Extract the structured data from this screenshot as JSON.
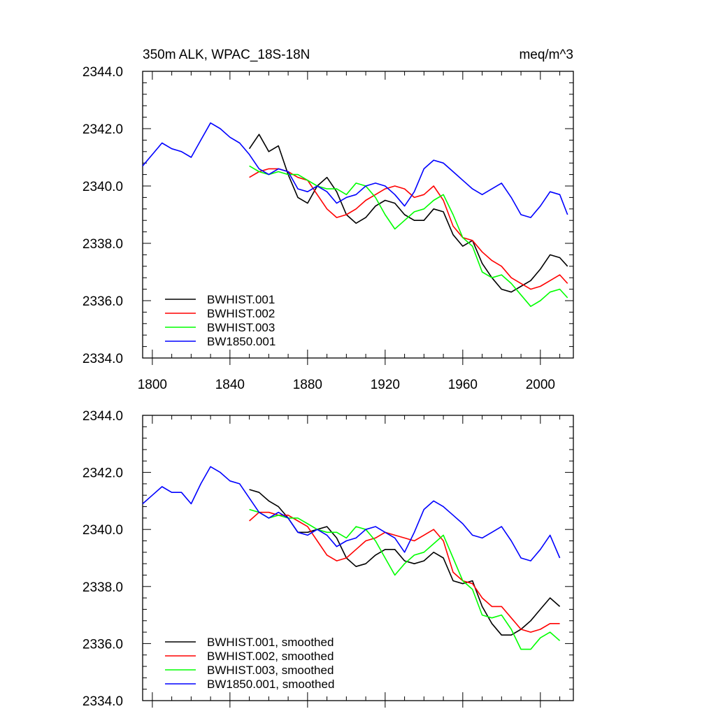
{
  "header": {
    "left_title": "350m ALK, WPAC_18S-18N",
    "right_title": "meq/m^3"
  },
  "chart_data": [
    {
      "type": "line",
      "title": "350m ALK, WPAC_18S-18N",
      "units": "meq/m^3",
      "xlim": [
        1795,
        2017
      ],
      "ylim": [
        2334,
        2344
      ],
      "xticks": [
        1800,
        1840,
        1880,
        1920,
        1960,
        2000
      ],
      "yticks": [
        2334,
        2336,
        2338,
        2340,
        2342,
        2344
      ],
      "ytick_labels": [
        "2334.0",
        "2336.0",
        "2338.0",
        "2340.0",
        "2342.0",
        "2344.0"
      ],
      "xtick_labels": [
        "1800",
        "1840",
        "1880",
        "1920",
        "1960",
        "2000"
      ],
      "legend_position": "bottom-left",
      "series": [
        {
          "name": "BWHIST.001",
          "color": "#000000",
          "x": [
            1850,
            1855,
            1860,
            1865,
            1870,
            1875,
            1880,
            1885,
            1890,
            1895,
            1900,
            1905,
            1910,
            1915,
            1920,
            1925,
            1930,
            1935,
            1940,
            1945,
            1950,
            1955,
            1960,
            1965,
            1970,
            1975,
            1980,
            1985,
            1990,
            1995,
            2000,
            2005,
            2010,
            2014
          ],
          "y": [
            2341.3,
            2341.8,
            2341.2,
            2341.4,
            2340.4,
            2339.6,
            2339.4,
            2340.0,
            2340.3,
            2339.8,
            2339.0,
            2338.7,
            2338.9,
            2339.3,
            2339.5,
            2339.4,
            2339.0,
            2338.8,
            2338.8,
            2339.2,
            2339.1,
            2338.3,
            2337.9,
            2338.1,
            2337.3,
            2336.8,
            2336.4,
            2336.3,
            2336.5,
            2336.7,
            2337.1,
            2337.6,
            2337.5,
            2337.2
          ]
        },
        {
          "name": "BWHIST.002",
          "color": "#ff0000",
          "x": [
            1850,
            1855,
            1860,
            1865,
            1870,
            1875,
            1880,
            1885,
            1890,
            1895,
            1900,
            1905,
            1910,
            1915,
            1920,
            1925,
            1930,
            1935,
            1940,
            1945,
            1950,
            1955,
            1960,
            1965,
            1970,
            1975,
            1980,
            1985,
            1990,
            1995,
            2000,
            2005,
            2010,
            2014
          ],
          "y": [
            2340.3,
            2340.5,
            2340.6,
            2340.6,
            2340.5,
            2340.3,
            2340.2,
            2339.7,
            2339.2,
            2338.9,
            2339.0,
            2339.2,
            2339.5,
            2339.7,
            2339.9,
            2340.0,
            2339.9,
            2339.6,
            2339.7,
            2340.0,
            2339.5,
            2338.6,
            2338.2,
            2338.1,
            2337.7,
            2337.4,
            2337.2,
            2336.8,
            2336.6,
            2336.4,
            2336.5,
            2336.7,
            2336.9,
            2336.6
          ]
        },
        {
          "name": "BWHIST.003",
          "color": "#00ff00",
          "x": [
            1850,
            1855,
            1860,
            1865,
            1870,
            1875,
            1880,
            1885,
            1890,
            1895,
            1900,
            1905,
            1910,
            1915,
            1920,
            1925,
            1930,
            1935,
            1940,
            1945,
            1950,
            1955,
            1960,
            1965,
            1970,
            1975,
            1980,
            1985,
            1990,
            1995,
            2000,
            2005,
            2010,
            2014
          ],
          "y": [
            2340.7,
            2340.5,
            2340.4,
            2340.5,
            2340.4,
            2340.4,
            2340.2,
            2340.0,
            2339.9,
            2339.9,
            2339.7,
            2340.1,
            2340.0,
            2339.6,
            2339.0,
            2338.5,
            2338.8,
            2339.1,
            2339.2,
            2339.5,
            2339.7,
            2339.0,
            2338.2,
            2337.9,
            2337.0,
            2336.8,
            2336.9,
            2336.6,
            2336.2,
            2335.8,
            2336.0,
            2336.3,
            2336.4,
            2336.1
          ]
        },
        {
          "name": "BW1850.001",
          "color": "#0000ff",
          "x": [
            1795,
            1800,
            1805,
            1810,
            1815,
            1820,
            1825,
            1830,
            1835,
            1840,
            1845,
            1850,
            1855,
            1860,
            1865,
            1870,
            1875,
            1880,
            1885,
            1890,
            1895,
            1900,
            1905,
            1910,
            1915,
            1920,
            1925,
            1930,
            1935,
            1940,
            1945,
            1950,
            1955,
            1960,
            1965,
            1970,
            1975,
            1980,
            1985,
            1990,
            1995,
            2000,
            2005,
            2010,
            2014
          ],
          "y": [
            2340.7,
            2341.1,
            2341.5,
            2341.3,
            2341.2,
            2341.0,
            2341.6,
            2342.2,
            2342.0,
            2341.7,
            2341.5,
            2341.1,
            2340.6,
            2340.4,
            2340.6,
            2340.5,
            2339.9,
            2339.8,
            2340.0,
            2339.8,
            2339.4,
            2339.6,
            2339.7,
            2340.0,
            2340.1,
            2340.0,
            2339.7,
            2339.3,
            2339.8,
            2340.6,
            2340.9,
            2340.8,
            2340.5,
            2340.2,
            2339.9,
            2339.7,
            2339.9,
            2340.1,
            2339.6,
            2339.0,
            2338.9,
            2339.3,
            2339.8,
            2339.7,
            2339.0
          ]
        }
      ]
    },
    {
      "type": "line",
      "xlim": [
        1795,
        2017
      ],
      "ylim": [
        2334,
        2344
      ],
      "xticks": [
        1800,
        1840,
        1880,
        1920,
        1960,
        2000
      ],
      "yticks": [
        2334,
        2336,
        2338,
        2340,
        2342,
        2344
      ],
      "ytick_labels": [
        "2334.0",
        "2336.0",
        "2338.0",
        "2340.0",
        "2342.0",
        "2344.0"
      ],
      "legend_position": "bottom-left",
      "series": [
        {
          "name": "BWHIST.001, smoothed",
          "color": "#000000",
          "x": [
            1850,
            1855,
            1860,
            1865,
            1870,
            1875,
            1880,
            1885,
            1890,
            1895,
            1900,
            1905,
            1910,
            1915,
            1920,
            1925,
            1930,
            1935,
            1940,
            1945,
            1950,
            1955,
            1960,
            1965,
            1970,
            1975,
            1980,
            1985,
            1990,
            1995,
            2000,
            2005,
            2010
          ],
          "y": [
            2341.4,
            2341.3,
            2341.0,
            2340.8,
            2340.4,
            2339.9,
            2339.9,
            2340.0,
            2340.1,
            2339.7,
            2339.0,
            2338.7,
            2338.8,
            2339.1,
            2339.3,
            2339.3,
            2338.9,
            2338.8,
            2338.9,
            2339.2,
            2339.0,
            2338.2,
            2338.1,
            2338.2,
            2337.3,
            2336.7,
            2336.3,
            2336.3,
            2336.5,
            2336.8,
            2337.2,
            2337.6,
            2337.3
          ]
        },
        {
          "name": "BWHIST.002, smoothed",
          "color": "#ff0000",
          "x": [
            1850,
            1855,
            1860,
            1865,
            1870,
            1875,
            1880,
            1885,
            1890,
            1895,
            1900,
            1905,
            1910,
            1915,
            1920,
            1925,
            1930,
            1935,
            1940,
            1945,
            1950,
            1955,
            1960,
            1965,
            1970,
            1975,
            1980,
            1985,
            1990,
            1995,
            2000,
            2005,
            2010
          ],
          "y": [
            2340.3,
            2340.6,
            2340.6,
            2340.5,
            2340.5,
            2340.3,
            2340.1,
            2339.6,
            2339.1,
            2338.9,
            2339.0,
            2339.3,
            2339.6,
            2339.7,
            2339.9,
            2339.8,
            2339.7,
            2339.6,
            2339.8,
            2340.0,
            2339.6,
            2338.5,
            2338.2,
            2338.1,
            2337.6,
            2337.3,
            2337.3,
            2336.9,
            2336.5,
            2336.4,
            2336.5,
            2336.7,
            2336.7
          ]
        },
        {
          "name": "BWHIST.003, smoothed",
          "color": "#00ff00",
          "x": [
            1850,
            1855,
            1860,
            1865,
            1870,
            1875,
            1880,
            1885,
            1890,
            1895,
            1900,
            1905,
            1910,
            1915,
            1920,
            1925,
            1930,
            1935,
            1940,
            1945,
            1950,
            1955,
            1960,
            1965,
            1970,
            1975,
            1980,
            1985,
            1990,
            1995,
            2000,
            2005,
            2010
          ],
          "y": [
            2340.7,
            2340.6,
            2340.4,
            2340.5,
            2340.4,
            2340.4,
            2340.2,
            2340.0,
            2339.9,
            2339.9,
            2339.7,
            2340.1,
            2340.0,
            2339.6,
            2339.0,
            2338.4,
            2338.8,
            2339.1,
            2339.2,
            2339.5,
            2339.8,
            2339.0,
            2338.2,
            2337.9,
            2337.0,
            2336.9,
            2337.0,
            2336.5,
            2335.8,
            2335.8,
            2336.2,
            2336.4,
            2336.1
          ]
        },
        {
          "name": "BW1850.001, smoothed",
          "color": "#0000ff",
          "x": [
            1795,
            1800,
            1805,
            1810,
            1815,
            1820,
            1825,
            1830,
            1835,
            1840,
            1845,
            1850,
            1855,
            1860,
            1865,
            1870,
            1875,
            1880,
            1885,
            1890,
            1895,
            1900,
            1905,
            1910,
            1915,
            1920,
            1925,
            1930,
            1935,
            1940,
            1945,
            1950,
            1955,
            1960,
            1965,
            1970,
            1975,
            1980,
            1985,
            1990,
            1995,
            2000,
            2005,
            2010
          ],
          "y": [
            2340.9,
            2341.2,
            2341.5,
            2341.3,
            2341.3,
            2340.9,
            2341.6,
            2342.2,
            2342.0,
            2341.7,
            2341.6,
            2341.1,
            2340.6,
            2340.4,
            2340.6,
            2340.4,
            2339.9,
            2339.8,
            2340.0,
            2339.8,
            2339.4,
            2339.6,
            2339.7,
            2340.0,
            2340.1,
            2339.9,
            2339.7,
            2339.2,
            2339.9,
            2340.7,
            2341.0,
            2340.8,
            2340.5,
            2340.2,
            2339.8,
            2339.7,
            2339.9,
            2340.1,
            2339.6,
            2339.0,
            2338.9,
            2339.3,
            2339.8,
            2339.0
          ]
        }
      ]
    }
  ]
}
